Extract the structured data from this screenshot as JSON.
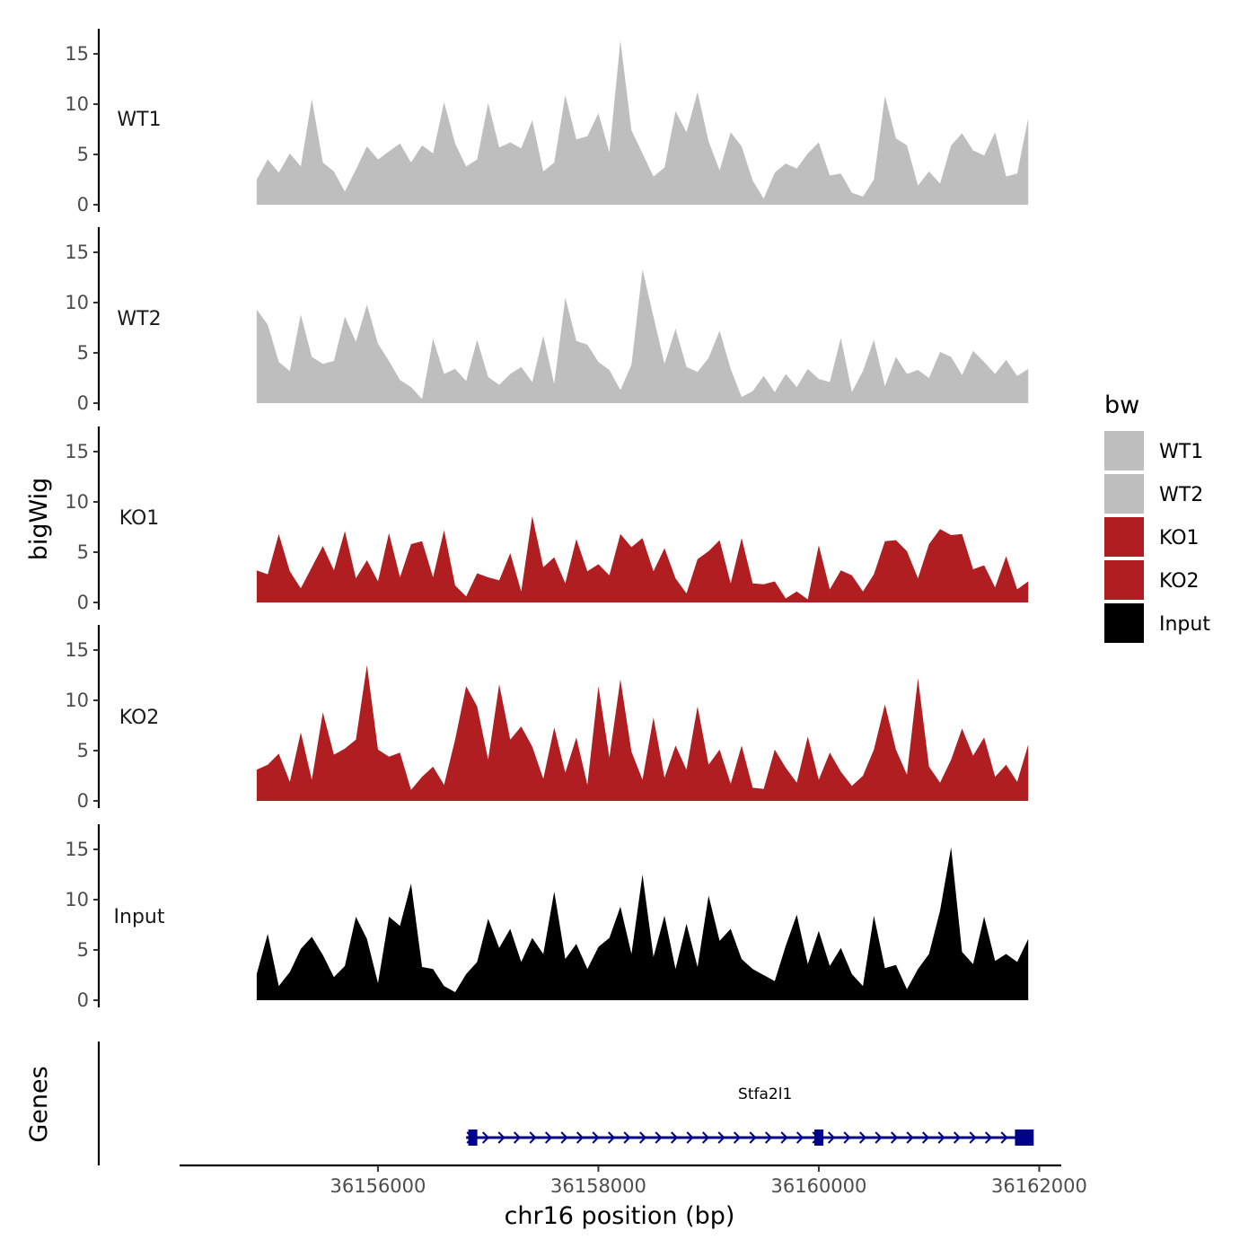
{
  "chart_data": {
    "type": "area",
    "chromosome": "chr16",
    "xlabel": "chr16 position (bp)",
    "ylabel": "bigWig",
    "gene_track_label": "Genes",
    "legend_title": "bw",
    "xlim": [
      36154200,
      36162200
    ],
    "xticks": [
      36156000,
      36158000,
      36160000,
      36162000
    ],
    "xtick_labels": [
      "36156000",
      "36158000",
      "36160000",
      "36162000"
    ],
    "ylim": [
      0,
      17.5
    ],
    "yticks": [
      0,
      5,
      10,
      15
    ],
    "ytick_labels": [
      "0",
      "5",
      "10",
      "15"
    ],
    "series": [
      {
        "name": "WT1",
        "color": "#bebebe",
        "x": [
          36154900,
          36155000,
          36155100,
          36155200,
          36155300,
          36155400,
          36155500,
          36155600,
          36155700,
          36155800,
          36155900,
          36156000,
          36156100,
          36156200,
          36156300,
          36156400,
          36156500,
          36156600,
          36156700,
          36156800,
          36156900,
          36157000,
          36157100,
          36157200,
          36157300,
          36157400,
          36157500,
          36157600,
          36157700,
          36157800,
          36157900,
          36158000,
          36158100,
          36158200,
          36158300,
          36158400,
          36158500,
          36158600,
          36158700,
          36158800,
          36158900,
          36159000,
          36159100,
          36159200,
          36159300,
          36159400,
          36159500,
          36159600,
          36159700,
          36159800,
          36159900,
          36160000,
          36160100,
          36160200,
          36160300,
          36160400,
          36160500,
          36160600,
          36160700,
          36160800,
          36160900,
          36161000,
          36161100,
          36161200,
          36161300,
          36161400,
          36161500,
          36161600,
          36161700,
          36161800,
          36161900
        ],
        "values": [
          2.5,
          4.5,
          3.2,
          5.1,
          3.8,
          10.5,
          4.2,
          3.3,
          1.3,
          3.5,
          5.8,
          4.5,
          5.3,
          6.1,
          4.2,
          5.9,
          5.1,
          10.2,
          6.1,
          3.8,
          4.5,
          10.1,
          5.7,
          6.2,
          5.6,
          8.4,
          3.3,
          4.2,
          10.9,
          6.5,
          6.8,
          9.1,
          5.2,
          16.3,
          7.4,
          5.1,
          2.8,
          3.7,
          9.3,
          7.2,
          11.2,
          6.3,
          3.4,
          7.2,
          5.8,
          2.4,
          0.6,
          3.2,
          4.1,
          3.6,
          5.1,
          6.2,
          2.9,
          3.1,
          1.2,
          0.8,
          2.5,
          10.8,
          6.6,
          5.9,
          1.9,
          3.3,
          2.1,
          5.9,
          7.1,
          5.4,
          4.9,
          7.2,
          2.8,
          3.1,
          8.6
        ]
      },
      {
        "name": "WT2",
        "color": "#bebebe",
        "x": [
          36154900,
          36155000,
          36155100,
          36155200,
          36155300,
          36155400,
          36155500,
          36155600,
          36155700,
          36155800,
          36155900,
          36156000,
          36156100,
          36156200,
          36156300,
          36156400,
          36156500,
          36156600,
          36156700,
          36156800,
          36156900,
          36157000,
          36157100,
          36157200,
          36157300,
          36157400,
          36157500,
          36157600,
          36157700,
          36157800,
          36157900,
          36158000,
          36158100,
          36158200,
          36158300,
          36158400,
          36158500,
          36158600,
          36158700,
          36158800,
          36158900,
          36159000,
          36159100,
          36159200,
          36159300,
          36159400,
          36159500,
          36159600,
          36159700,
          36159800,
          36159900,
          36160000,
          36160100,
          36160200,
          36160300,
          36160400,
          36160500,
          36160600,
          36160700,
          36160800,
          36160900,
          36161000,
          36161100,
          36161200,
          36161300,
          36161400,
          36161500,
          36161600,
          36161700,
          36161800,
          36161900
        ],
        "values": [
          9.3,
          7.8,
          4.1,
          3.2,
          8.8,
          4.6,
          3.9,
          4.2,
          8.6,
          6.1,
          9.8,
          5.9,
          4.2,
          2.3,
          1.6,
          0.4,
          6.4,
          2.9,
          3.4,
          2.2,
          6.3,
          2.6,
          1.8,
          2.9,
          3.6,
          2.1,
          6.7,
          1.9,
          10.5,
          6.2,
          5.8,
          4.1,
          3.3,
          1.3,
          3.8,
          13.3,
          8.6,
          3.9,
          7.4,
          3.6,
          3.1,
          4.5,
          7.2,
          3.4,
          0.6,
          1.2,
          2.7,
          1.1,
          2.9,
          1.6,
          3.4,
          2.4,
          2.1,
          6.5,
          1.1,
          3.2,
          6.3,
          1.7,
          4.6,
          2.9,
          3.3,
          2.5,
          5.1,
          4.6,
          2.8,
          5.2,
          4.1,
          2.9,
          4.3,
          2.7,
          3.4
        ]
      },
      {
        "name": "KO1",
        "color": "#b01e22",
        "x": [
          36154900,
          36155000,
          36155100,
          36155200,
          36155300,
          36155400,
          36155500,
          36155600,
          36155700,
          36155800,
          36155900,
          36156000,
          36156100,
          36156200,
          36156300,
          36156400,
          36156500,
          36156600,
          36156700,
          36156800,
          36156900,
          36157000,
          36157100,
          36157200,
          36157300,
          36157400,
          36157500,
          36157600,
          36157700,
          36157800,
          36157900,
          36158000,
          36158100,
          36158200,
          36158300,
          36158400,
          36158500,
          36158600,
          36158700,
          36158800,
          36158900,
          36159000,
          36159100,
          36159200,
          36159300,
          36159400,
          36159500,
          36159600,
          36159700,
          36159800,
          36159900,
          36160000,
          36160100,
          36160200,
          36160300,
          36160400,
          36160500,
          36160600,
          36160700,
          36160800,
          36160900,
          36161000,
          36161100,
          36161200,
          36161300,
          36161400,
          36161500,
          36161600,
          36161700,
          36161800,
          36161900
        ],
        "values": [
          3.2,
          2.8,
          6.8,
          3.1,
          1.4,
          3.5,
          5.6,
          3.2,
          7.1,
          2.4,
          4.2,
          2.1,
          6.9,
          2.5,
          5.8,
          6.1,
          2.5,
          7.2,
          1.7,
          0.6,
          2.9,
          2.5,
          2.2,
          4.9,
          1.1,
          8.6,
          3.5,
          4.5,
          1.9,
          6.3,
          3.1,
          3.8,
          2.7,
          6.8,
          5.5,
          6.4,
          3.1,
          5.4,
          2.4,
          0.9,
          4.3,
          5.1,
          6.2,
          1.9,
          6.4,
          1.9,
          1.8,
          2.1,
          0.4,
          1.1,
          0.3,
          5.7,
          1.3,
          3.2,
          2.7,
          1.1,
          2.8,
          6.1,
          6.2,
          5.1,
          2.4,
          5.8,
          7.3,
          6.7,
          6.8,
          3.3,
          3.7,
          1.5,
          4.6,
          1.3,
          2.1
        ]
      },
      {
        "name": "KO2",
        "color": "#b01e22",
        "x": [
          36154900,
          36155000,
          36155100,
          36155200,
          36155300,
          36155400,
          36155500,
          36155600,
          36155700,
          36155800,
          36155900,
          36156000,
          36156100,
          36156200,
          36156300,
          36156400,
          36156500,
          36156600,
          36156700,
          36156800,
          36156900,
          36157000,
          36157100,
          36157200,
          36157300,
          36157400,
          36157500,
          36157600,
          36157700,
          36157800,
          36157900,
          36158000,
          36158100,
          36158200,
          36158300,
          36158400,
          36158500,
          36158600,
          36158700,
          36158800,
          36158900,
          36159000,
          36159100,
          36159200,
          36159300,
          36159400,
          36159500,
          36159600,
          36159700,
          36159800,
          36159900,
          36160000,
          36160100,
          36160200,
          36160300,
          36160400,
          36160500,
          36160600,
          36160700,
          36160800,
          36160900,
          36161000,
          36161100,
          36161200,
          36161300,
          36161400,
          36161500,
          36161600,
          36161700,
          36161800,
          36161900
        ],
        "values": [
          3.1,
          3.6,
          4.7,
          1.9,
          6.8,
          2.1,
          8.8,
          4.6,
          5.2,
          6.1,
          13.5,
          5.1,
          4.4,
          4.8,
          1.1,
          2.4,
          3.4,
          1.6,
          6.1,
          11.4,
          9.4,
          4.1,
          11.6,
          6.1,
          7.4,
          5.4,
          2.2,
          7.3,
          2.8,
          6.3,
          1.6,
          11.4,
          4.3,
          12.1,
          4.9,
          2.1,
          8.3,
          2.3,
          5.5,
          3.1,
          9.4,
          3.6,
          5.1,
          1.7,
          5.5,
          1.3,
          1.2,
          5.1,
          3.3,
          1.8,
          6.4,
          2.1,
          4.8,
          2.9,
          1.5,
          2.5,
          5.1,
          9.6,
          5.1,
          2.6,
          12.2,
          3.4,
          1.8,
          4.1,
          7.2,
          4.5,
          6.3,
          2.4,
          3.6,
          1.9,
          5.6
        ]
      },
      {
        "name": "Input",
        "color": "#000000",
        "x": [
          36154900,
          36155000,
          36155100,
          36155200,
          36155300,
          36155400,
          36155500,
          36155600,
          36155700,
          36155800,
          36155900,
          36156000,
          36156100,
          36156200,
          36156300,
          36156400,
          36156500,
          36156600,
          36156700,
          36156800,
          36156900,
          36157000,
          36157100,
          36157200,
          36157300,
          36157400,
          36157500,
          36157600,
          36157700,
          36157800,
          36157900,
          36158000,
          36158100,
          36158200,
          36158300,
          36158400,
          36158500,
          36158600,
          36158700,
          36158800,
          36158900,
          36159000,
          36159100,
          36159200,
          36159300,
          36159400,
          36159500,
          36159600,
          36159700,
          36159800,
          36159900,
          36160000,
          36160100,
          36160200,
          36160300,
          36160400,
          36160500,
          36160600,
          36160700,
          36160800,
          36160900,
          36161000,
          36161100,
          36161200,
          36161300,
          36161400,
          36161500,
          36161600,
          36161700,
          36161800,
          36161900
        ],
        "values": [
          2.6,
          6.6,
          1.4,
          2.8,
          5.1,
          6.3,
          4.5,
          2.3,
          3.4,
          8.3,
          6.1,
          1.7,
          8.3,
          7.4,
          11.6,
          3.3,
          3.1,
          1.4,
          0.8,
          2.6,
          3.8,
          8.1,
          5.2,
          7.1,
          3.8,
          6.2,
          4.6,
          10.8,
          4.1,
          5.6,
          3.1,
          5.3,
          6.2,
          9.3,
          4.6,
          12.5,
          4.3,
          8.4,
          3.1,
          7.6,
          3.3,
          10.4,
          5.9,
          7.1,
          4.1,
          3.1,
          2.5,
          1.9,
          5.4,
          8.5,
          3.6,
          6.9,
          3.4,
          5.2,
          2.6,
          1.4,
          8.4,
          3.2,
          3.5,
          1.1,
          3.1,
          4.6,
          8.9,
          15.2,
          4.8,
          3.6,
          8.3,
          3.9,
          4.6,
          3.8,
          6.1
        ]
      }
    ],
    "legend": [
      {
        "label": "WT1",
        "color": "#bebebe"
      },
      {
        "label": "WT2",
        "color": "#bebebe"
      },
      {
        "label": "KO1",
        "color": "#b01e22"
      },
      {
        "label": "KO2",
        "color": "#b01e22"
      },
      {
        "label": "Input",
        "color": "#000000"
      }
    ],
    "gene": {
      "name": "Stfa2l1",
      "color": "#00008b",
      "start": 36156800,
      "end": 36161900,
      "strand": "+",
      "exons": [
        [
          36156820,
          36156900
        ],
        [
          36159960,
          36160040
        ],
        [
          36161780,
          36161950
        ]
      ]
    }
  }
}
